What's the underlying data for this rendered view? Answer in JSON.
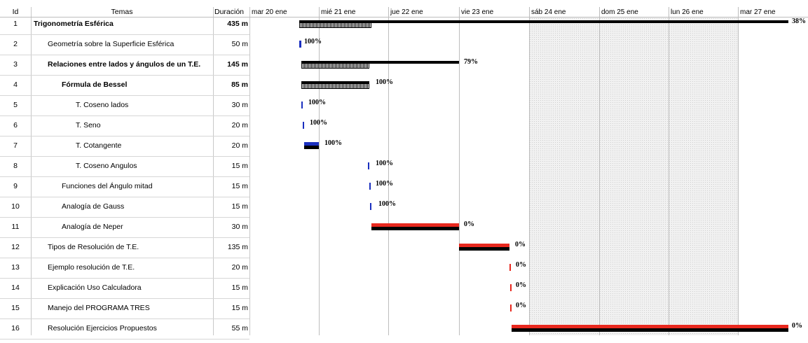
{
  "headers": {
    "id": "Id",
    "task": "Temas",
    "duration": "Duración"
  },
  "timeline": [
    "mar 20 ene",
    "mié 21 ene",
    "jue 22 ene",
    "vie 23 ene",
    "sáb 24 ene",
    "dom 25 ene",
    "lun 26 ene",
    "mar 27 ene"
  ],
  "tasks": [
    {
      "id": "1",
      "name": "Trigonometría Esférica",
      "duration": "435 m",
      "summary": true,
      "progress": "38%"
    },
    {
      "id": "2",
      "name": "Geometría sobre la Superficie Esférica",
      "duration": "50 m",
      "summary": false,
      "progress": "100%"
    },
    {
      "id": "3",
      "name": "Relaciones entre lados y ángulos de un T.E.",
      "duration": "145 m",
      "summary": true,
      "progress": "79%"
    },
    {
      "id": "4",
      "name": "Fórmula de Bessel",
      "duration": "85 m",
      "summary": true,
      "progress": "100%"
    },
    {
      "id": "5",
      "name": "T. Coseno lados",
      "duration": "30 m",
      "summary": false,
      "progress": "100%"
    },
    {
      "id": "6",
      "name": "T. Seno",
      "duration": "20 m",
      "summary": false,
      "progress": "100%"
    },
    {
      "id": "7",
      "name": "T. Cotangente",
      "duration": "20 m",
      "summary": false,
      "progress": "100%"
    },
    {
      "id": "8",
      "name": "T. Coseno Angulos",
      "duration": "15 m",
      "summary": false,
      "progress": "100%"
    },
    {
      "id": "9",
      "name": "Funciones del Ángulo mitad",
      "duration": "15 m",
      "summary": false,
      "progress": "100%"
    },
    {
      "id": "10",
      "name": "Analogía de Gauss",
      "duration": "15 m",
      "summary": false,
      "progress": "100%"
    },
    {
      "id": "11",
      "name": "Analogía de Neper",
      "duration": "30 m",
      "summary": false,
      "progress": "0%"
    },
    {
      "id": "12",
      "name": "Tipos de Resolución de T.E.",
      "duration": "135 m",
      "summary": false,
      "progress": "0%"
    },
    {
      "id": "13",
      "name": "Ejemplo resolución de T.E.",
      "duration": "20 m",
      "summary": false,
      "progress": "0%"
    },
    {
      "id": "14",
      "name": "Explicación Uso Calculadora",
      "duration": "15 m",
      "summary": false,
      "progress": "0%"
    },
    {
      "id": "15",
      "name": "Manejo del PROGRAMA TRES",
      "duration": "15 m",
      "summary": false,
      "progress": "0%"
    },
    {
      "id": "16",
      "name": "Resolución Ejercicios Propuestos",
      "duration": "55 m",
      "summary": false,
      "progress": "0%"
    }
  ],
  "colors": {
    "complete": "#1a2fbf",
    "pending": "#e8281e",
    "baseline": "#000000",
    "weekend": "#f1f1f1",
    "grid": "#c8c8c8"
  }
}
